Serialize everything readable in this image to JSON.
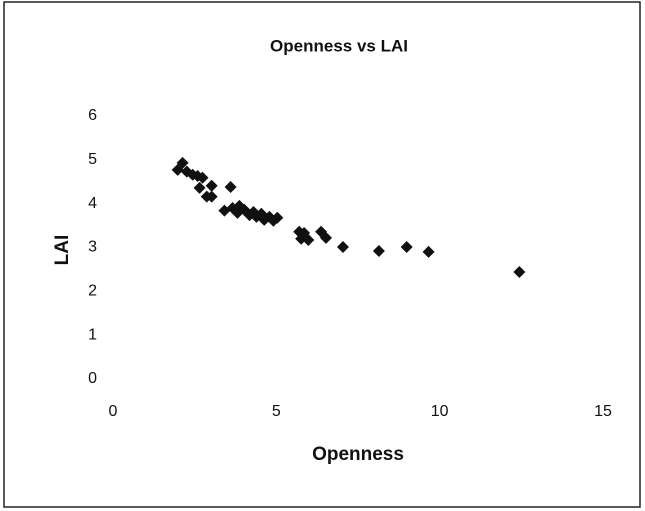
{
  "chart_data": {
    "type": "scatter",
    "title": "Openness vs LAI",
    "x_label": "Openness",
    "y_label": "LAI",
    "xlim": [
      0,
      15
    ],
    "ylim": [
      0,
      6
    ],
    "xticks": [
      0,
      5,
      10,
      15
    ],
    "yticks": [
      0,
      1,
      2,
      3,
      4,
      5,
      6
    ],
    "grid": false,
    "series": [
      {
        "color": "#111111",
        "x": [
          1.98,
          2.13,
          2.26,
          2.44,
          2.59,
          2.74,
          2.65,
          3.02,
          2.87,
          3.02,
          3.6,
          3.41,
          3.66,
          3.81,
          3.87,
          4.02,
          4.18,
          4.3,
          4.39,
          4.54,
          4.63,
          4.79,
          4.91,
          5.03,
          5.7,
          5.85,
          5.76,
          5.98,
          6.37,
          6.52,
          7.04,
          8.14,
          8.99,
          9.66,
          12.44
        ],
        "values": [
          4.77,
          4.93,
          4.73,
          4.66,
          4.63,
          4.59,
          4.36,
          4.41,
          4.16,
          4.16,
          4.38,
          3.84,
          3.9,
          3.79,
          3.95,
          3.86,
          3.74,
          3.81,
          3.7,
          3.77,
          3.63,
          3.7,
          3.61,
          3.68,
          3.36,
          3.33,
          3.2,
          3.17,
          3.36,
          3.22,
          3.01,
          2.92,
          3.01,
          2.9,
          2.44
        ]
      }
    ]
  }
}
